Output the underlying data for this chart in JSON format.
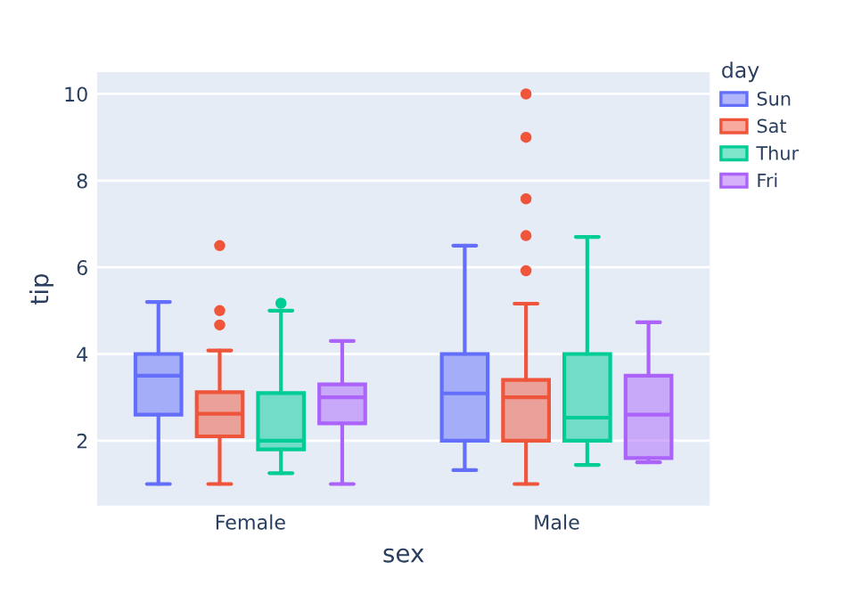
{
  "chart_data": {
    "type": "box",
    "xlabel": "sex",
    "ylabel": "tip",
    "legend_title": "day",
    "categories": [
      "Female",
      "Male"
    ],
    "series": [
      {
        "name": "Sun",
        "color": "#636efa",
        "boxes": [
          {
            "low": 1.0,
            "q1": 2.6,
            "median": 3.5,
            "q3": 4.0,
            "high": 5.2
          },
          {
            "low": 1.32,
            "q1": 2.0,
            "median": 3.09,
            "q3": 4.0,
            "high": 6.5
          }
        ]
      },
      {
        "name": "Sat",
        "color": "#ef553b",
        "boxes": [
          {
            "low": 1.0,
            "q1": 2.1,
            "median": 2.62,
            "q3": 3.12,
            "high": 4.08,
            "outliers": [
              4.67,
              5.0,
              6.5
            ]
          },
          {
            "low": 1.0,
            "q1": 2.0,
            "median": 3.0,
            "q3": 3.4,
            "high": 5.16,
            "outliers": [
              5.92,
              6.73,
              7.58,
              9.0,
              10.0
            ]
          }
        ]
      },
      {
        "name": "Thur",
        "color": "#00cc96",
        "boxes": [
          {
            "low": 1.25,
            "q1": 1.8,
            "median": 2.0,
            "q3": 3.1,
            "high": 5.0,
            "outliers": [
              5.17
            ]
          },
          {
            "low": 1.44,
            "q1": 2.0,
            "median": 2.53,
            "q3": 4.0,
            "high": 6.7
          }
        ]
      },
      {
        "name": "Fri",
        "color": "#ab63fa",
        "boxes": [
          {
            "low": 1.0,
            "q1": 2.4,
            "median": 3.0,
            "q3": 3.3,
            "high": 4.3
          },
          {
            "low": 1.5,
            "q1": 1.6,
            "median": 2.6,
            "q3": 3.5,
            "high": 4.73
          }
        ]
      }
    ],
    "ylim": [
      0.5,
      10.5
    ],
    "yticks": [
      2,
      4,
      6,
      8,
      10
    ],
    "grid": "y",
    "legend": "top right"
  }
}
